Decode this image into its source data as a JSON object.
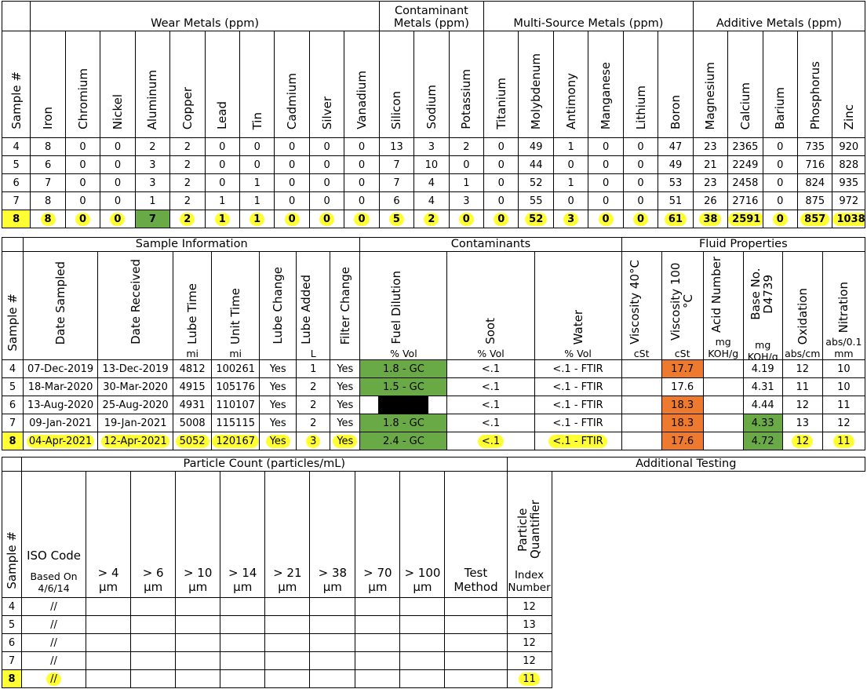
{
  "metals": {
    "group_headers": [
      "Wear Metals (ppm)",
      "Contaminant Metals (ppm)",
      "Multi-Source Metals (ppm)",
      "Additive Metals (ppm)"
    ],
    "sample_header": "Sample #",
    "columns": [
      "Iron",
      "Chromium",
      "Nickel",
      "Aluminum",
      "Copper",
      "Lead",
      "Tin",
      "Cadmium",
      "Silver",
      "Vanadium",
      "Silicon",
      "Sodium",
      "Potassium",
      "Titanium",
      "Molybdenum",
      "Antimony",
      "Manganese",
      "Lithium",
      "Boron",
      "Magnesium",
      "Calcium",
      "Barium",
      "Phosphorus",
      "Zinc"
    ],
    "rows": [
      {
        "sample": "4",
        "values": [
          "8",
          "0",
          "0",
          "2",
          "2",
          "0",
          "0",
          "0",
          "0",
          "0",
          "13",
          "3",
          "2",
          "0",
          "49",
          "1",
          "0",
          "0",
          "47",
          "23",
          "2365",
          "0",
          "735",
          "920"
        ]
      },
      {
        "sample": "5",
        "values": [
          "6",
          "0",
          "0",
          "3",
          "2",
          "0",
          "0",
          "0",
          "0",
          "0",
          "7",
          "10",
          "0",
          "0",
          "44",
          "0",
          "0",
          "0",
          "49",
          "21",
          "2249",
          "0",
          "716",
          "828"
        ]
      },
      {
        "sample": "6",
        "values": [
          "7",
          "0",
          "0",
          "3",
          "2",
          "0",
          "1",
          "0",
          "0",
          "0",
          "7",
          "4",
          "1",
          "0",
          "52",
          "1",
          "0",
          "0",
          "53",
          "23",
          "2458",
          "0",
          "824",
          "935"
        ]
      },
      {
        "sample": "7",
        "values": [
          "8",
          "0",
          "0",
          "1",
          "2",
          "1",
          "1",
          "0",
          "0",
          "0",
          "6",
          "4",
          "3",
          "0",
          "55",
          "0",
          "0",
          "0",
          "51",
          "26",
          "2716",
          "0",
          "875",
          "972"
        ]
      },
      {
        "sample": "8",
        "values": [
          "8",
          "0",
          "0",
          "7",
          "2",
          "1",
          "1",
          "0",
          "0",
          "0",
          "5",
          "2",
          "0",
          "0",
          "52",
          "3",
          "0",
          "0",
          "61",
          "38",
          "2591",
          "0",
          "857",
          "1038"
        ]
      }
    ]
  },
  "sample_info": {
    "group_headers": [
      "Sample Information",
      "Contaminants",
      "Fluid Properties"
    ],
    "sample_header": "Sample #",
    "columns": [
      {
        "label": "Date Sampled",
        "unit": ""
      },
      {
        "label": "Date  Received",
        "unit": ""
      },
      {
        "label": "Lube Time",
        "unit": "mi"
      },
      {
        "label": "Unit Time",
        "unit": "mi"
      },
      {
        "label": "Lube Change",
        "unit": ""
      },
      {
        "label": "Lube Added",
        "unit": "L"
      },
      {
        "label": "Filter Change",
        "unit": ""
      },
      {
        "label": "Fuel Dilution",
        "unit": "% Vol"
      },
      {
        "label": "Soot",
        "unit": "% Vol"
      },
      {
        "label": "Water",
        "unit": "% Vol"
      },
      {
        "label": "Viscosity 40°C",
        "unit": "cSt"
      },
      {
        "label": "Viscosity 100 °C",
        "unit": "cSt"
      },
      {
        "label": "Acid Number",
        "unit": "mg KOH/g"
      },
      {
        "label": "Base No. D4739",
        "unit": "mg KOH/g"
      },
      {
        "label": "Oxidation",
        "unit": "abs/cm"
      },
      {
        "label": "Nitration",
        "unit": "abs/0.1 mm"
      }
    ],
    "rows": [
      {
        "sample": "4",
        "values": [
          "07-Dec-2019",
          "13-Dec-2019",
          "4812",
          "100261",
          "Yes",
          "1",
          "Yes",
          "1.8 - GC",
          "<.1",
          "<.1 - FTIR",
          "",
          "17.7",
          "",
          "4.19",
          "12",
          "10"
        ]
      },
      {
        "sample": "5",
        "values": [
          "18-Mar-2020",
          "30-Mar-2020",
          "4915",
          "105176",
          "Yes",
          "2",
          "Yes",
          "1.5 - GC",
          "<.1",
          "<.1 - FTIR",
          "",
          "17.6",
          "",
          "4.31",
          "11",
          "10"
        ]
      },
      {
        "sample": "6",
        "values": [
          "13-Aug-2020",
          "25-Aug-2020",
          "4931",
          "110107",
          "Yes",
          "2",
          "Yes",
          "",
          "<.1",
          "<.1 - FTIR",
          "",
          "18.3",
          "",
          "4.44",
          "12",
          "11"
        ]
      },
      {
        "sample": "7",
        "values": [
          "09-Jan-2021",
          "19-Jan-2021",
          "5008",
          "115115",
          "Yes",
          "2",
          "Yes",
          "1.8 - GC",
          "<.1",
          "<.1 - FTIR",
          "",
          "18.3",
          "",
          "4.33",
          "13",
          "12"
        ]
      },
      {
        "sample": "8",
        "values": [
          "04-Apr-2021",
          "12-Apr-2021",
          "5052",
          "120167",
          "Yes",
          "3",
          "Yes",
          "2.4 - GC",
          "<.1",
          "<.1 - FTIR",
          "",
          "17.6",
          "",
          "4.72",
          "12",
          "11"
        ]
      }
    ]
  },
  "particle": {
    "group_headers": [
      "Particle Count (particles/mL)",
      "Additional Testing"
    ],
    "sample_header": "Sample #",
    "iso_label": "ISO Code",
    "iso_sub": "Based On 4/6/14",
    "sizes": [
      "> 4 µm",
      "> 6 µm",
      "> 10 µm",
      "> 14 µm",
      "> 21 µm",
      "> 38 µm",
      "> 70 µm",
      "> 100 µm"
    ],
    "test_method": "Test Method",
    "pq_label": "Particle Quantifier",
    "pq_sub": "Index Number",
    "rows": [
      {
        "sample": "4",
        "iso": "//",
        "pq": "12"
      },
      {
        "sample": "5",
        "iso": "//",
        "pq": "13"
      },
      {
        "sample": "6",
        "iso": "//",
        "pq": "12"
      },
      {
        "sample": "7",
        "iso": "//",
        "pq": "12"
      },
      {
        "sample": "8",
        "iso": "//",
        "pq": "11"
      }
    ]
  },
  "colors": {
    "highlight": "#ffff33",
    "good": "#6aaa46",
    "alert": "#ed7a2e",
    "blocked": "#000000"
  }
}
